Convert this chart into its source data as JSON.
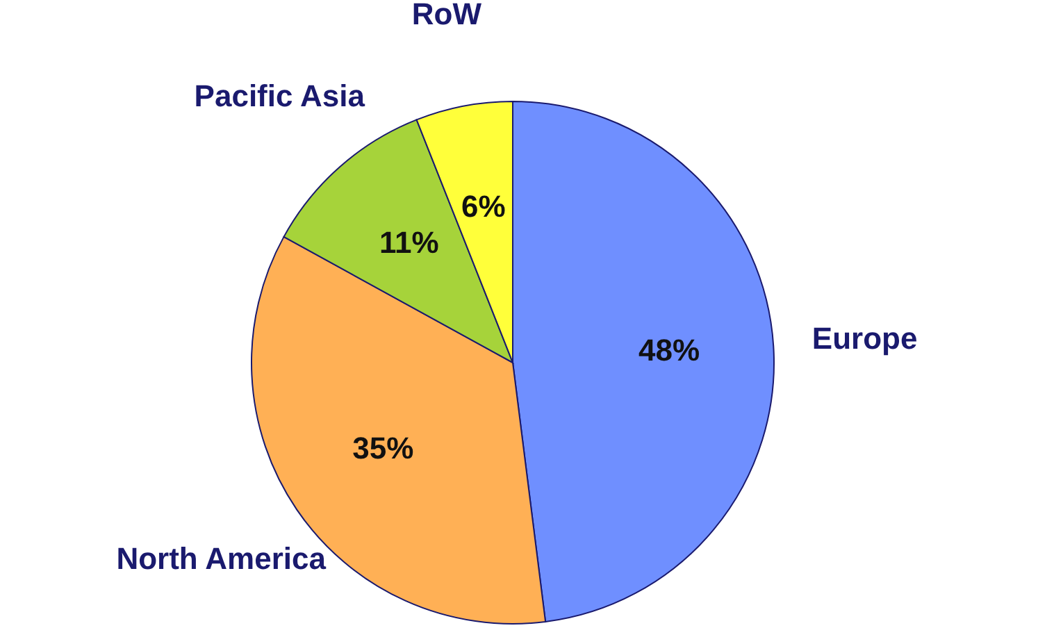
{
  "chart_data": {
    "type": "pie",
    "categories": [
      "Europe",
      "North America",
      "Pacific Asia",
      "RoW"
    ],
    "values": [
      48,
      35,
      11,
      6
    ],
    "value_labels": [
      "48%",
      "35%",
      "11%",
      "6%"
    ],
    "colors": [
      "#6f8fff",
      "#ffb055",
      "#a6d33a",
      "#ffff3a"
    ]
  }
}
